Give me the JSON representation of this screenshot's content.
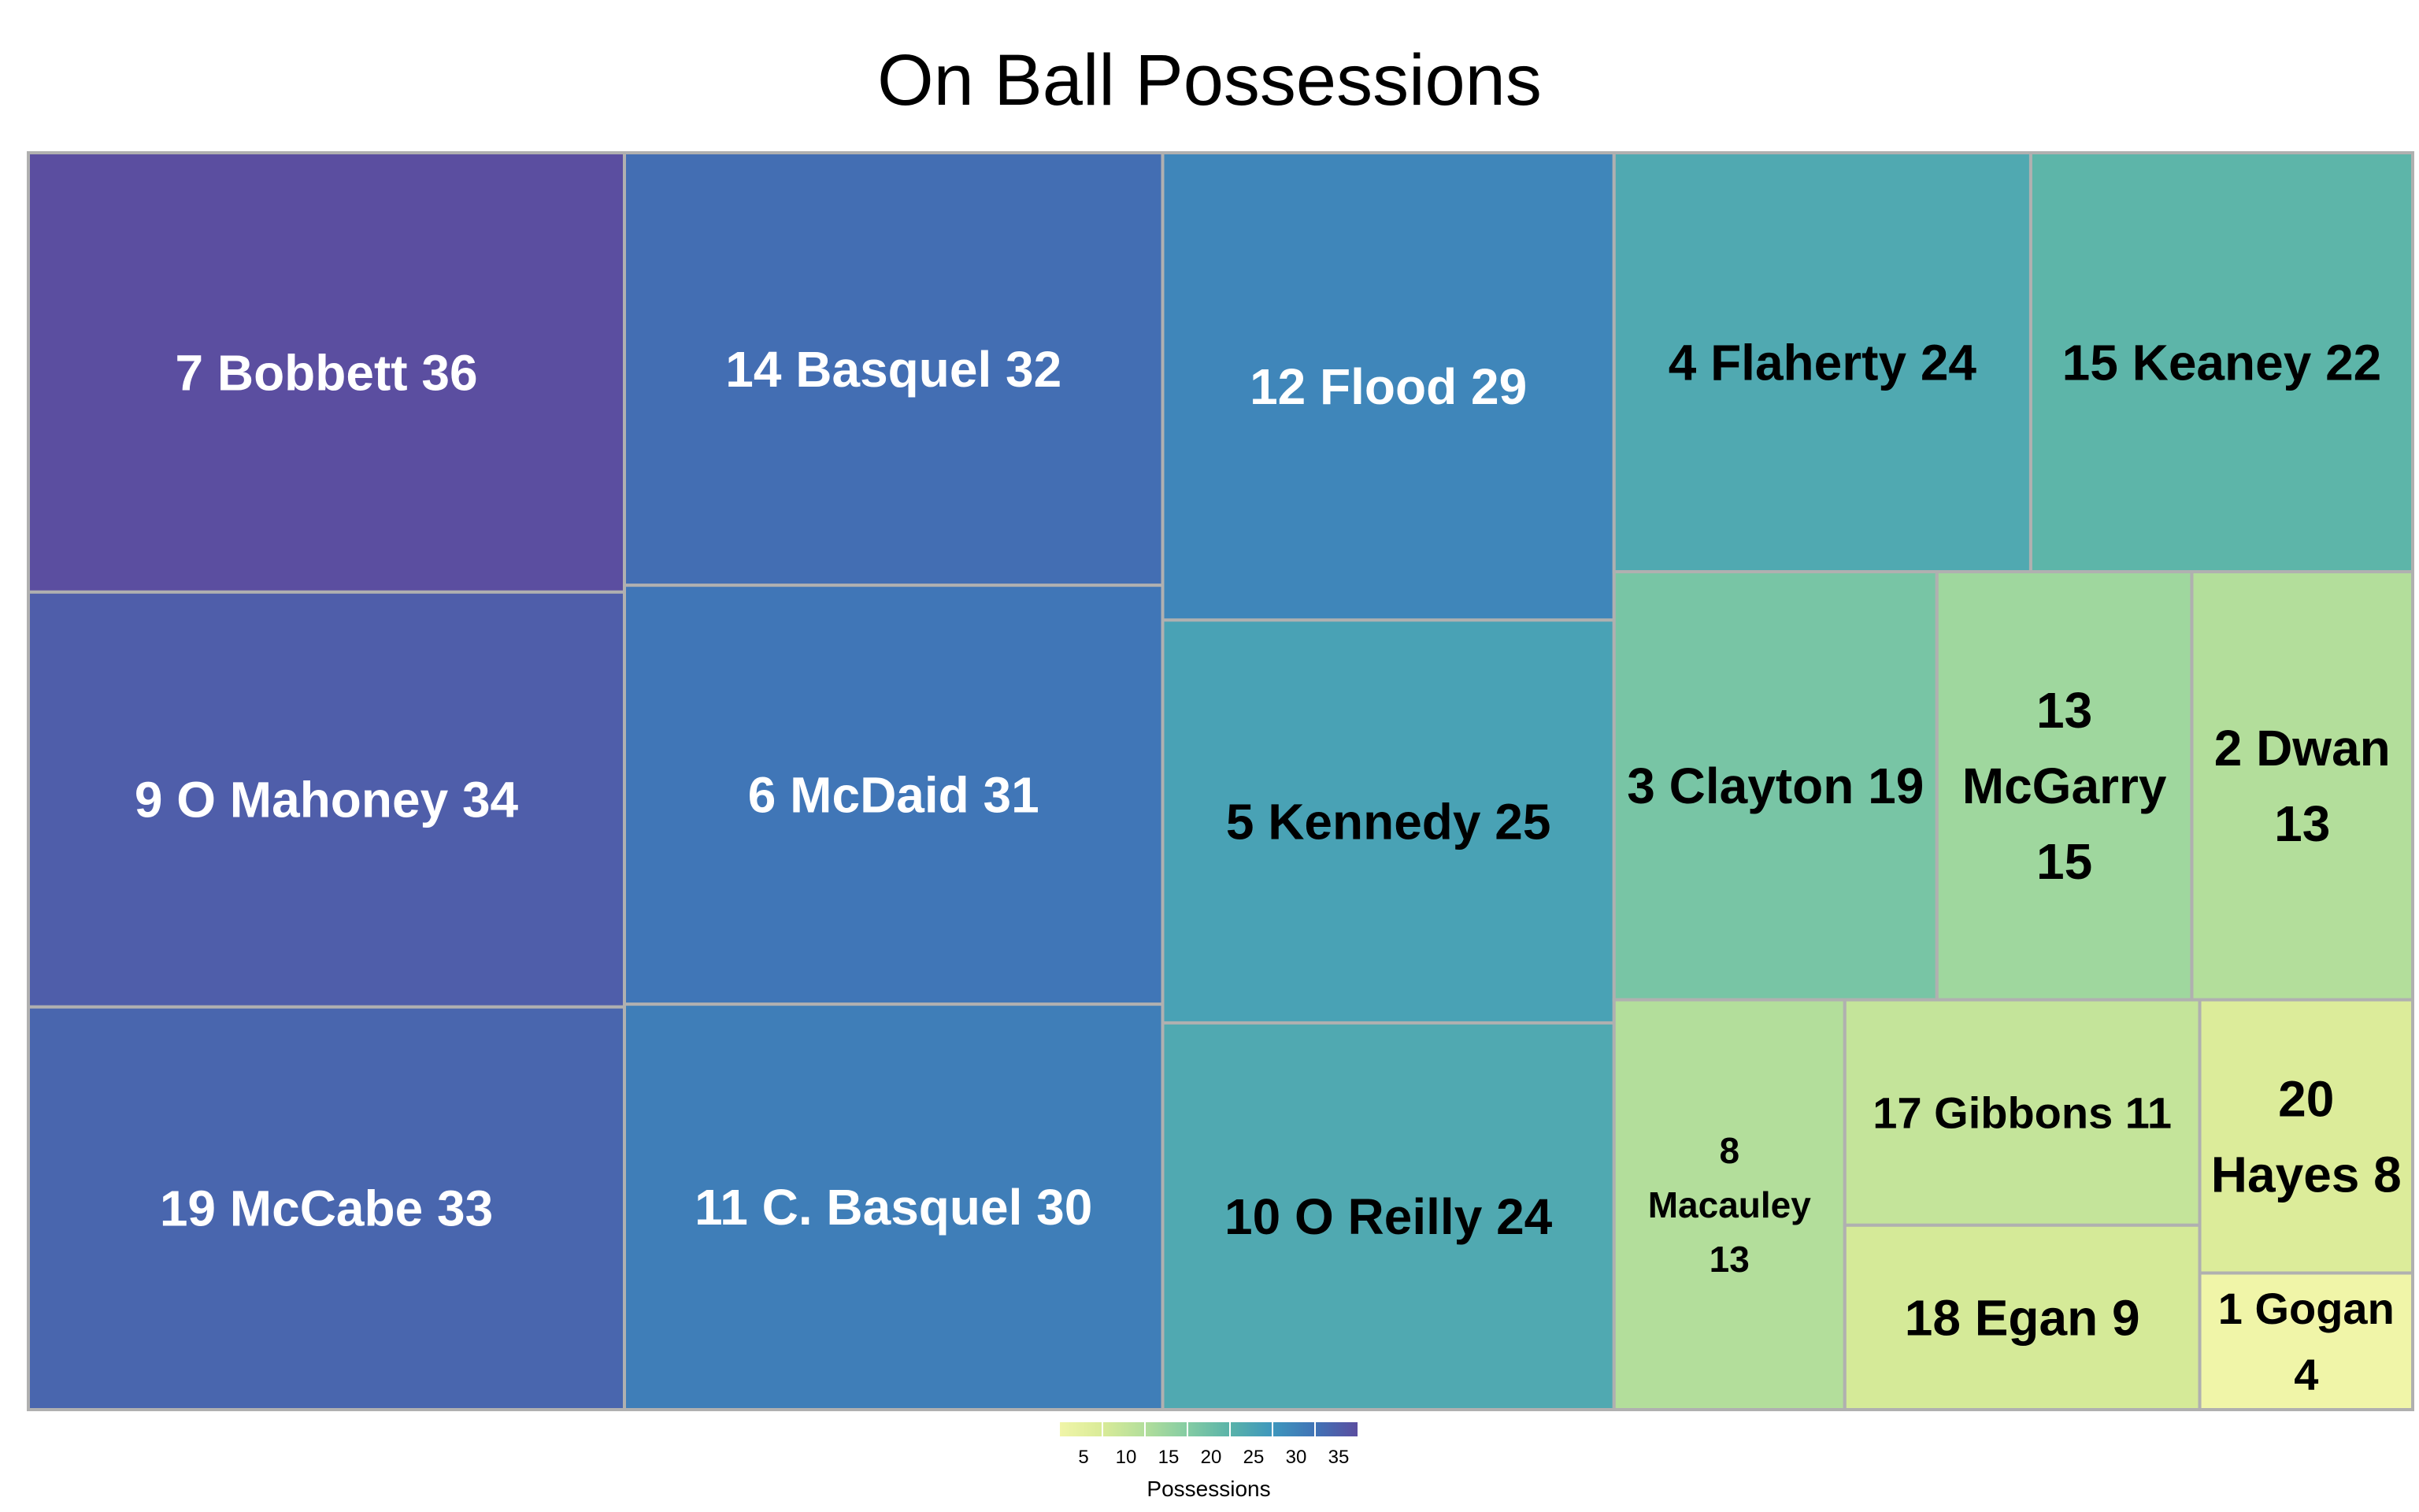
{
  "chart_data": {
    "type": "treemap",
    "title": "On Ball Possessions",
    "value_label": "Possessions",
    "items": [
      {
        "label": "7 Bobbett 36",
        "value": 36
      },
      {
        "label": "9 O Mahoney 34",
        "value": 34
      },
      {
        "label": "19 McCabe 33",
        "value": 33
      },
      {
        "label": "14 Basquel 32",
        "value": 32
      },
      {
        "label": "6 McDaid 31",
        "value": 31
      },
      {
        "label": "11 C. Basquel 30",
        "value": 30
      },
      {
        "label": "12 Flood 29",
        "value": 29
      },
      {
        "label": "5 Kennedy 25",
        "value": 25
      },
      {
        "label": "10 O Reilly 24",
        "value": 24
      },
      {
        "label": "4 Flaherty 24",
        "value": 24
      },
      {
        "label": "15 Keaney 22",
        "value": 22
      },
      {
        "label": "3 Clayton 19",
        "value": 19
      },
      {
        "label": "13 McGarry 15",
        "value": 15
      },
      {
        "label": "2 Dwan 13",
        "value": 13
      },
      {
        "label": "8 Macauley 13",
        "value": 13
      },
      {
        "label": "17 Gibbons 11",
        "value": 11
      },
      {
        "label": "18 Egan  9",
        "value": 9
      },
      {
        "label": "20 Hayes 8",
        "value": 8
      },
      {
        "label": "1 Gogan 4",
        "value": 4
      }
    ],
    "colorscale": [
      "#f0f5a8",
      "#d9eb98",
      "#b2de9b",
      "#84cca3",
      "#5ab3a9",
      "#3e97bd",
      "#4073b6",
      "#5b4ea0"
    ],
    "color_range": [
      4,
      36
    ],
    "legend": {
      "title": "Possessions",
      "ticks": [
        "5",
        "10",
        "15",
        "20",
        "25",
        "30",
        "35"
      ],
      "position": "bottom-center"
    }
  }
}
